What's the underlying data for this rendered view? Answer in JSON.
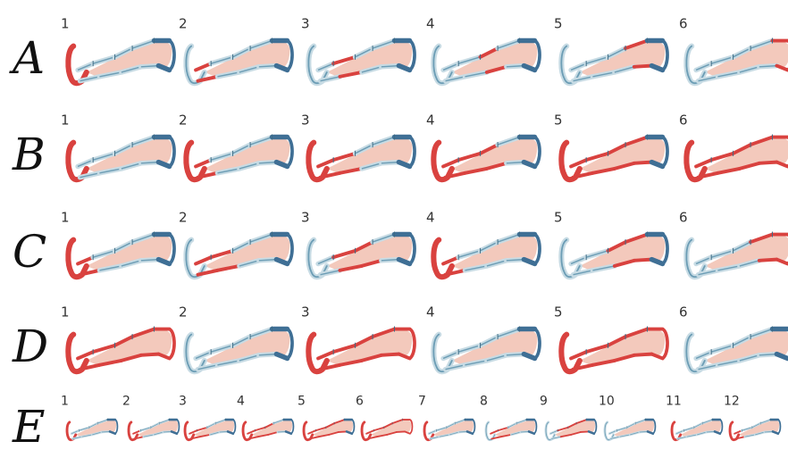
{
  "colors": {
    "inflated": "#d9423f",
    "deflated_outline": "#6c9db5",
    "deflated_fill": "#c7dbe4",
    "foot_dark": "#3f6f95",
    "leg_fill": "#f3c9bc",
    "separator": "#3d6b84"
  },
  "rows": [
    {
      "letter": "A",
      "steps": [
        {
          "label": "1",
          "state": [
            1,
            0,
            0,
            0,
            0,
            0
          ]
        },
        {
          "label": "2",
          "state": [
            0,
            1,
            0,
            0,
            0,
            0
          ]
        },
        {
          "label": "3",
          "state": [
            0,
            0,
            1,
            0,
            0,
            0
          ]
        },
        {
          "label": "4",
          "state": [
            0,
            0,
            0,
            1,
            0,
            0
          ]
        },
        {
          "label": "5",
          "state": [
            0,
            0,
            0,
            0,
            1,
            0
          ]
        },
        {
          "label": "6",
          "state": [
            0,
            0,
            0,
            0,
            0,
            1
          ]
        }
      ]
    },
    {
      "letter": "B",
      "steps": [
        {
          "label": "1",
          "state": [
            1,
            0,
            0,
            0,
            0,
            0
          ]
        },
        {
          "label": "2",
          "state": [
            1,
            1,
            0,
            0,
            0,
            0
          ]
        },
        {
          "label": "3",
          "state": [
            1,
            1,
            1,
            0,
            0,
            0
          ]
        },
        {
          "label": "4",
          "state": [
            1,
            1,
            1,
            1,
            0,
            0
          ]
        },
        {
          "label": "5",
          "state": [
            1,
            1,
            1,
            1,
            1,
            0
          ]
        },
        {
          "label": "6",
          "state": [
            1,
            1,
            1,
            1,
            1,
            1
          ]
        }
      ]
    },
    {
      "letter": "C",
      "steps": [
        {
          "label": "1",
          "state": [
            1,
            1,
            0,
            0,
            0,
            0
          ]
        },
        {
          "label": "2",
          "state": [
            0,
            1,
            1,
            0,
            0,
            0
          ]
        },
        {
          "label": "3",
          "state": [
            0,
            0,
            1,
            1,
            0,
            0
          ]
        },
        {
          "label": "4",
          "state": [
            1,
            1,
            0,
            0,
            0,
            0
          ]
        },
        {
          "label": "5",
          "state": [
            0,
            0,
            0,
            1,
            1,
            0
          ]
        },
        {
          "label": "6",
          "state": [
            0,
            0,
            0,
            0,
            1,
            1
          ]
        }
      ]
    },
    {
      "letter": "D",
      "steps": [
        {
          "label": "1",
          "state": [
            1,
            1,
            1,
            1,
            1,
            1
          ]
        },
        {
          "label": "2",
          "state": [
            0,
            0,
            0,
            0,
            0,
            0
          ]
        },
        {
          "label": "3",
          "state": [
            1,
            1,
            1,
            1,
            1,
            1
          ]
        },
        {
          "label": "4",
          "state": [
            0,
            0,
            0,
            0,
            0,
            0
          ]
        },
        {
          "label": "5",
          "state": [
            1,
            1,
            1,
            1,
            1,
            1
          ]
        },
        {
          "label": "6",
          "state": [
            0,
            0,
            0,
            0,
            0,
            0
          ]
        }
      ]
    },
    {
      "letter": "E",
      "steps": [
        {
          "label": "1",
          "state": [
            1,
            0,
            0,
            0,
            0,
            0
          ]
        },
        {
          "label": "2",
          "state": [
            1,
            1,
            0,
            0,
            0,
            0
          ]
        },
        {
          "label": "3",
          "state": [
            1,
            1,
            1,
            0,
            0,
            0
          ]
        },
        {
          "label": "4",
          "state": [
            1,
            1,
            1,
            1,
            0,
            0
          ]
        },
        {
          "label": "5",
          "state": [
            1,
            1,
            1,
            1,
            1,
            0
          ]
        },
        {
          "label": "6",
          "state": [
            1,
            1,
            1,
            1,
            1,
            1
          ]
        },
        {
          "label": "7",
          "state": [
            1,
            0,
            0,
            0,
            0,
            0
          ]
        },
        {
          "label": "8",
          "state": [
            0,
            1,
            1,
            0,
            0,
            0
          ]
        },
        {
          "label": "9",
          "state": [
            0,
            0,
            1,
            1,
            1,
            0
          ]
        },
        {
          "label": "10",
          "state": [
            0,
            0,
            0,
            0,
            0,
            0
          ]
        },
        {
          "label": "11",
          "state": [
            1,
            0,
            0,
            0,
            0,
            0
          ]
        },
        {
          "label": "12",
          "state": [
            1,
            1,
            0,
            0,
            0,
            0
          ]
        }
      ]
    }
  ]
}
